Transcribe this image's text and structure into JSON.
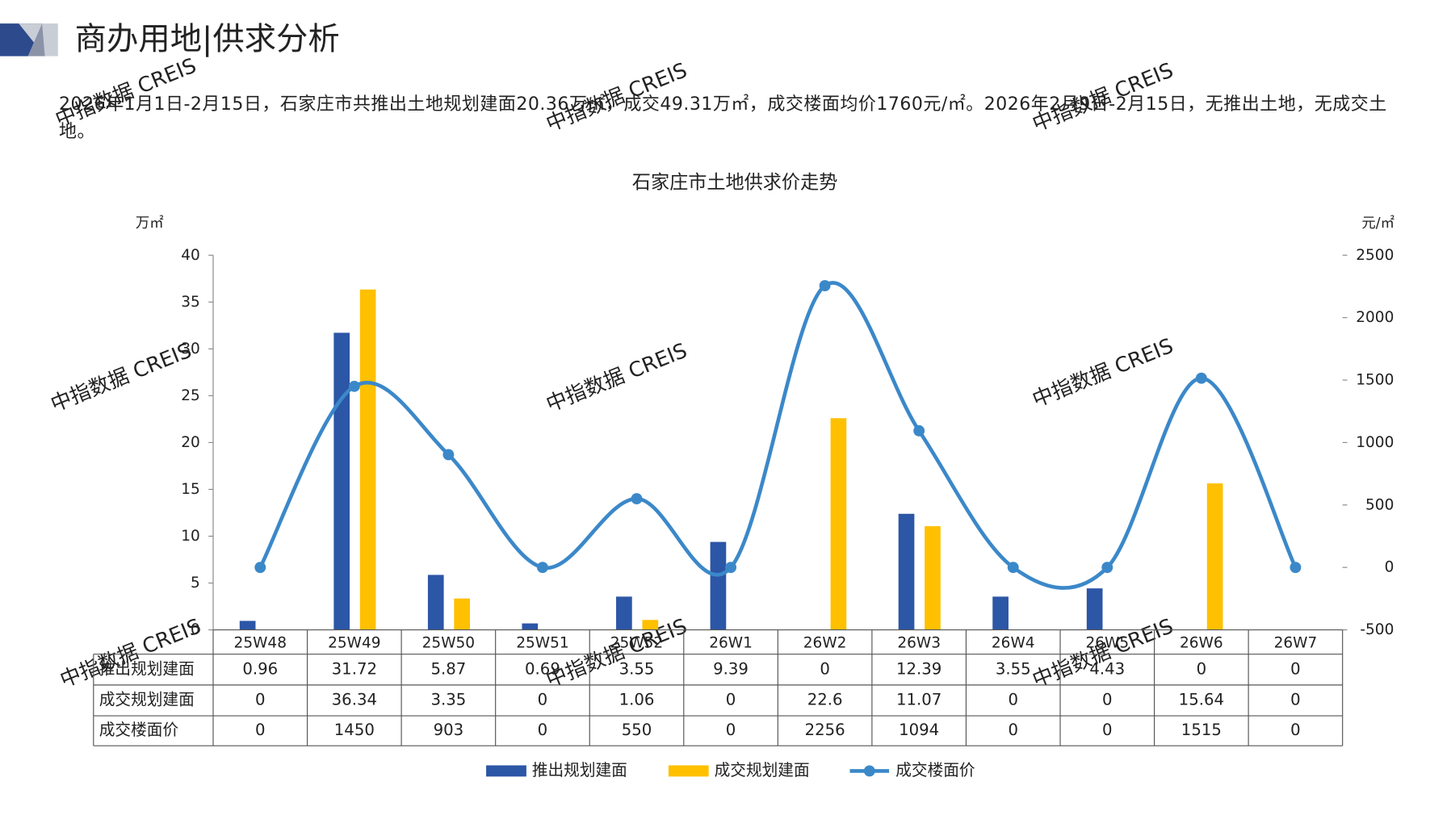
{
  "header": {
    "title": "商办用地|供求分析",
    "summary": "2026年1月1日-2月15日，石家庄市共推出土地规划建面20.36万㎡，成交49.31万㎡，成交楼面均价1760元/㎡。2026年2月9日-2月15日，无推出土地，无成交土地。"
  },
  "watermark": "中指数据 CREIS",
  "chart_data": {
    "type": "bar",
    "title": "石家庄市土地供求价走势",
    "y_label": "万㎡",
    "y2_label": "元/㎡",
    "categories": [
      "25W48",
      "25W49",
      "25W50",
      "25W51",
      "25W52",
      "26W1",
      "26W2",
      "26W3",
      "26W4",
      "26W5",
      "26W6",
      "26W7"
    ],
    "series": [
      {
        "name": "推出规划建面",
        "color": "#2c56a6",
        "type": "bar",
        "values": [
          0.96,
          31.72,
          5.87,
          0.69,
          3.55,
          9.39,
          0,
          12.39,
          3.55,
          4.43,
          0,
          0
        ]
      },
      {
        "name": "成交规划建面",
        "color": "#ffc000",
        "type": "bar",
        "values": [
          0,
          36.34,
          3.35,
          0,
          1.06,
          0,
          22.6,
          11.07,
          0,
          0,
          15.64,
          0
        ]
      },
      {
        "name": "成交楼面价",
        "color": "#3b88c9",
        "type": "line",
        "axis": "y2",
        "values": [
          0,
          1450,
          903,
          0,
          550,
          0,
          2256,
          1094,
          0,
          0,
          1515,
          0
        ]
      }
    ],
    "ylim": [
      0,
      40
    ],
    "yticks": [
      0,
      5,
      10,
      15,
      20,
      25,
      30,
      35,
      40
    ],
    "y2lim": [
      -500,
      2500
    ],
    "y2ticks": [
      -500,
      0,
      500,
      1000,
      1500,
      2000,
      2500
    ],
    "data_table": true,
    "legend": "bottom"
  }
}
